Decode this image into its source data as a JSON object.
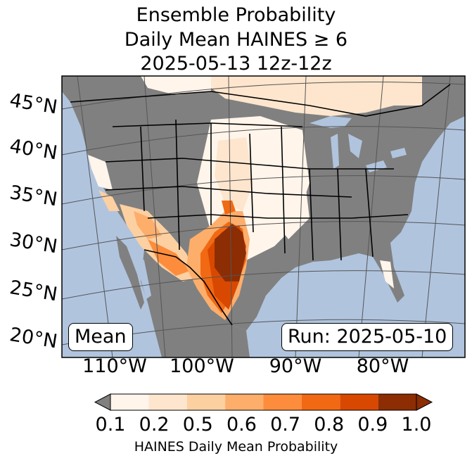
{
  "title": {
    "line1": "Ensemble Probability",
    "line2": "Daily Mean HAINES ≥ 6",
    "line3": "2025-05-13 12z-12z"
  },
  "map": {
    "latitude_labels": [
      "45°N",
      "40°N",
      "35°N",
      "30°N",
      "25°N",
      "20°N"
    ],
    "longitude_labels": [
      "110°W",
      "100°W",
      "90°W",
      "80°W"
    ],
    "colors": {
      "ocean": "#b0c4de",
      "land_below_threshold": "#808080",
      "border": "#000000",
      "graticule": "#555555"
    }
  },
  "annotations": {
    "left_box": "Mean",
    "right_box": "Run: 2025-05-10"
  },
  "colorbar": {
    "ticks": [
      "0.1",
      "0.2",
      "0.5",
      "0.6",
      "0.7",
      "0.8",
      "0.9",
      "1.0"
    ],
    "label": "HAINES Daily Mean Probability",
    "under_color": "#808080",
    "colors": [
      "#fff5eb",
      "#fee6ce",
      "#fdd0a2",
      "#fdae6b",
      "#fd8d3c",
      "#f16913",
      "#d94801",
      "#8c2d04"
    ]
  }
}
